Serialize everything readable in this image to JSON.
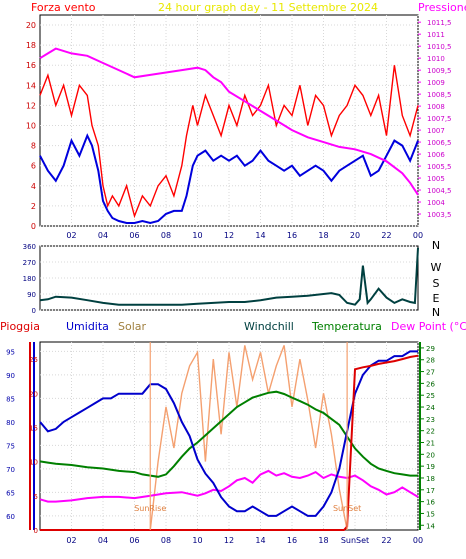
{
  "chart_data": [
    {
      "type": "line",
      "title": "24 hour graph day - 11 Settembre 2024",
      "left_axis_label": "Forza vento",
      "right_axis_label": "Pressione",
      "x_ticks": [
        "02",
        "04",
        "06",
        "08",
        "10",
        "12",
        "14",
        "16",
        "18",
        "20",
        "22",
        "00"
      ],
      "x_range": [
        0,
        24
      ],
      "y_left_ticks": [
        "0",
        "2",
        "4",
        "6",
        "8",
        "10",
        "12",
        "14",
        "16",
        "18",
        "20"
      ],
      "y_left_range": [
        0,
        21
      ],
      "y_right_ticks": [
        "1003,5",
        "1004",
        "1004,5",
        "1005",
        "1005,5",
        "1006",
        "1006,5",
        "1007",
        "1007,5",
        "1008",
        "1008,5",
        "1009",
        "1009,5",
        "1010",
        "1010,5",
        "1011",
        "1011,5"
      ],
      "y_right_range": [
        1003.0,
        1011.8
      ],
      "colors": {
        "gust": "#ff0000",
        "wind": "#0000dd",
        "pressure": "#ff00ff",
        "title": "#e8e800"
      },
      "series": [
        {
          "axis": "left",
          "x": [
            0,
            0.5,
            1,
            1.5,
            2,
            2.5,
            3,
            3.3,
            3.7,
            4,
            4.3,
            4.6,
            5,
            5.5,
            6,
            6.5,
            7,
            7.5,
            8,
            8.5,
            9,
            9.3,
            9.7,
            10,
            10.5,
            11,
            11.5,
            12,
            12.5,
            13,
            13.5,
            14,
            14.5,
            15,
            15.5,
            16,
            16.5,
            17,
            17.5,
            18,
            18.5,
            19,
            19.5,
            20,
            20.5,
            21,
            21.5,
            22,
            22.5,
            23,
            23.5,
            24
          ],
          "values": [
            13,
            15,
            12,
            14,
            11,
            14,
            13,
            10,
            8,
            4,
            2,
            3,
            2,
            4,
            1,
            3,
            2,
            4,
            5,
            3,
            6,
            9,
            12,
            10,
            13,
            11,
            9,
            12,
            10,
            13,
            11,
            12,
            14,
            10,
            12,
            11,
            14,
            10,
            13,
            12,
            9,
            11,
            12,
            14,
            13,
            11,
            13,
            9,
            16,
            11,
            9,
            12
          ]
        },
        {
          "axis": "left",
          "x": [
            0,
            0.5,
            1,
            1.5,
            2,
            2.5,
            3,
            3.3,
            3.7,
            4,
            4.3,
            4.6,
            5,
            5.5,
            6,
            6.5,
            7,
            7.5,
            8,
            8.5,
            9,
            9.3,
            9.7,
            10,
            10.5,
            11,
            11.5,
            12,
            12.5,
            13,
            13.5,
            14,
            14.5,
            15,
            15.5,
            16,
            16.5,
            17,
            17.5,
            18,
            18.5,
            19,
            19.5,
            20,
            20.5,
            21,
            21.5,
            22,
            22.5,
            23,
            23.5,
            24
          ],
          "values": [
            7,
            5.5,
            4.5,
            6,
            8.5,
            7,
            9,
            8,
            5.5,
            2.5,
            1.5,
            0.8,
            0.5,
            0.3,
            0.3,
            0.5,
            0.3,
            0.5,
            1.2,
            1.5,
            1.5,
            3,
            6,
            7,
            7.5,
            6.5,
            7,
            6.5,
            7,
            6,
            6.5,
            7.5,
            6.5,
            6,
            5.5,
            6,
            5,
            5.5,
            6,
            5.5,
            4.5,
            5.5,
            6,
            6.5,
            7,
            5,
            5.5,
            7,
            8.5,
            8,
            6.5,
            8.5
          ]
        },
        {
          "axis": "right",
          "x": [
            0,
            0.5,
            1,
            2,
            3,
            4,
            5,
            6,
            7,
            8,
            9,
            10,
            10.5,
            11,
            11.5,
            12,
            13,
            14,
            15,
            16,
            17,
            18,
            19,
            20,
            21,
            22,
            23,
            23.5,
            24
          ],
          "values": [
            1010.0,
            1010.2,
            1010.4,
            1010.2,
            1010.1,
            1009.8,
            1009.5,
            1009.2,
            1009.3,
            1009.4,
            1009.5,
            1009.6,
            1009.5,
            1009.2,
            1009.0,
            1008.6,
            1008.2,
            1007.8,
            1007.4,
            1007.0,
            1006.7,
            1006.5,
            1006.3,
            1006.2,
            1006.0,
            1005.7,
            1005.2,
            1004.8,
            1004.3
          ]
        }
      ]
    },
    {
      "type": "line",
      "title": "",
      "right_axis_label": "N W S E N",
      "compass_labels": [
        "N",
        "W",
        "S",
        "E",
        "N"
      ],
      "x_range": [
        0,
        24
      ],
      "y_ticks": [
        "0",
        "90",
        "180",
        "270",
        "360"
      ],
      "y_range": [
        0,
        360
      ],
      "colors": {
        "direction": "#004040"
      },
      "series": [
        {
          "axis": "left",
          "x": [
            0,
            0.5,
            1,
            2,
            3,
            4,
            5,
            6,
            7,
            8,
            9,
            10,
            11,
            12,
            13,
            14,
            15,
            16,
            17,
            18,
            18.5,
            19,
            19.5,
            20,
            20.3,
            20.5,
            20.8,
            21,
            21.5,
            22,
            22.5,
            23,
            23.5,
            23.8,
            24
          ],
          "values": [
            55,
            60,
            75,
            70,
            55,
            40,
            30,
            30,
            30,
            30,
            30,
            35,
            40,
            45,
            45,
            55,
            70,
            75,
            80,
            90,
            95,
            85,
            40,
            30,
            60,
            250,
            40,
            60,
            120,
            70,
            40,
            60,
            45,
            40,
            350
          ]
        }
      ]
    },
    {
      "type": "line",
      "title": "",
      "legend": [
        "Pioggia",
        "Umidita",
        "Solar",
        "Windchill",
        "Temperatura",
        "Dew Point (°C)"
      ],
      "x_ticks": [
        "02",
        "04",
        "06",
        "08",
        "10",
        "12",
        "14",
        "16",
        "18",
        "SunSet",
        "22",
        "00"
      ],
      "x_range": [
        0,
        24
      ],
      "rain_ticks": [
        "0",
        "5",
        "10",
        "15",
        "20",
        "25"
      ],
      "rain_range": [
        0,
        27.5
      ],
      "humidity_ticks": [
        "60",
        "65",
        "70",
        "75",
        "80",
        "85",
        "90",
        "95"
      ],
      "humidity_range": [
        57,
        97
      ],
      "temp_ticks": [
        "14",
        "15",
        "16",
        "17",
        "18",
        "19",
        "20",
        "21",
        "22",
        "23",
        "24",
        "25",
        "26",
        "27",
        "28",
        "29"
      ],
      "temp_range": [
        13.6,
        29.5
      ],
      "annotations": [
        {
          "text": "SunRise",
          "x": 7.0
        },
        {
          "text": "SunSet",
          "x": 19.5
        }
      ],
      "colors": {
        "rain": "#dd0000",
        "humidity": "#0000cc",
        "solar": "#f4a070",
        "windchill": "#006600",
        "temperature": "#008000",
        "dewpoint": "#ff00ff"
      },
      "series": [
        {
          "axis": "humidity",
          "x": [
            0,
            0.5,
            1,
            1.5,
            2,
            2.5,
            3,
            3.5,
            4,
            4.5,
            5,
            5.5,
            6,
            6.5,
            7,
            7.5,
            8,
            8.5,
            9,
            9.5,
            10,
            10.5,
            11,
            11.5,
            12,
            12.5,
            13,
            13.5,
            14,
            14.5,
            15,
            15.5,
            16,
            16.5,
            17,
            17.5,
            18,
            18.5,
            19,
            19.5,
            20,
            20.5,
            21,
            21.5,
            22,
            22.5,
            23,
            23.5,
            24
          ],
          "values": [
            80,
            78,
            78.5,
            80,
            81,
            82,
            83,
            84,
            85,
            85,
            86,
            86,
            86,
            86,
            88,
            88,
            87,
            84,
            80,
            77,
            72,
            69,
            67,
            64,
            62,
            61,
            61,
            62,
            61,
            60,
            60,
            61,
            62,
            61,
            60,
            60,
            62,
            65,
            70,
            78,
            86,
            90,
            92,
            93,
            93,
            94,
            94,
            95,
            95
          ]
        },
        {
          "axis": "temp",
          "x": [
            0,
            0.5,
            1,
            2,
            3,
            4,
            5,
            6,
            6.5,
            7,
            7.5,
            8,
            8.5,
            9,
            9.5,
            10,
            10.5,
            11,
            11.5,
            12,
            12.5,
            13,
            13.5,
            14,
            14.5,
            15,
            15.5,
            16,
            16.5,
            17,
            17.5,
            18,
            18.5,
            19,
            19.5,
            20,
            20.5,
            21,
            21.5,
            22,
            22.5,
            23,
            23.5,
            24
          ],
          "values": [
            19.4,
            19.3,
            19.2,
            19.1,
            18.9,
            18.8,
            18.6,
            18.5,
            18.3,
            18.2,
            18.1,
            18.3,
            19.0,
            19.8,
            20.5,
            21.0,
            21.6,
            22.2,
            22.8,
            23.4,
            24.0,
            24.4,
            24.8,
            25.0,
            25.2,
            25.3,
            25.1,
            24.8,
            24.5,
            24.2,
            23.8,
            23.5,
            23.0,
            22.5,
            21.5,
            20.5,
            19.8,
            19.2,
            18.8,
            18.6,
            18.4,
            18.3,
            18.2,
            18.2
          ]
        },
        {
          "axis": "temp",
          "x": [
            0,
            0.5,
            1,
            2,
            3,
            4,
            5,
            6,
            7,
            8,
            9,
            10,
            10.5,
            11,
            11.5,
            12,
            12.5,
            13,
            13.5,
            14,
            14.5,
            15,
            15.5,
            16,
            16.5,
            17,
            17.5,
            18,
            18.5,
            19,
            19.5,
            20,
            20.5,
            21,
            21.5,
            22,
            22.5,
            23,
            23.5,
            24
          ],
          "values": [
            16.2,
            16.0,
            16.0,
            16.1,
            16.3,
            16.4,
            16.4,
            16.3,
            16.5,
            16.7,
            16.8,
            16.5,
            16.7,
            17.0,
            16.9,
            17.3,
            17.8,
            18.0,
            17.6,
            18.3,
            18.6,
            18.2,
            18.4,
            18.1,
            18.0,
            18.2,
            18.5,
            18.0,
            18.3,
            18.1,
            18.0,
            18.2,
            17.8,
            17.3,
            17.0,
            16.6,
            16.8,
            17.2,
            16.8,
            16.4
          ]
        },
        {
          "axis": "rain",
          "x": [
            0,
            19.3,
            19.5,
            20.0,
            20.5,
            21.0,
            21.5,
            22.0,
            22.5,
            23.0,
            23.5,
            24
          ],
          "values": [
            0,
            0,
            0.5,
            23.5,
            23.8,
            24.0,
            24.3,
            24.5,
            24.7,
            25.0,
            25.3,
            25.5
          ]
        },
        {
          "axis": "rain",
          "x": [
            7,
            7.5,
            8,
            8.5,
            9,
            9.5,
            10,
            10.5,
            11,
            11.5,
            12,
            12.5,
            13,
            13.5,
            14,
            14.5,
            15,
            15.5,
            16,
            16.5,
            17,
            17.5,
            18,
            18.5,
            19,
            19.5
          ],
          "values": [
            0,
            10,
            18,
            12,
            20,
            24,
            26,
            10,
            25,
            14,
            26,
            18,
            27,
            22,
            26,
            20,
            24,
            27,
            18,
            25,
            19,
            12,
            20,
            14,
            6,
            0
          ]
        }
      ]
    }
  ]
}
